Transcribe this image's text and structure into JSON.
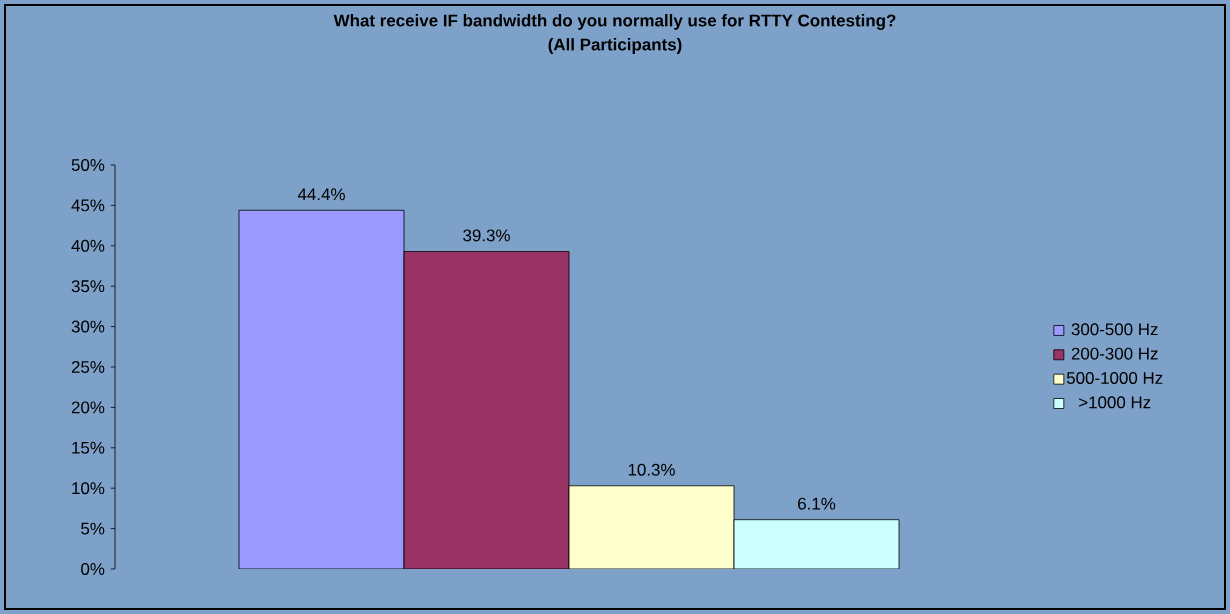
{
  "chart_data": {
    "type": "bar",
    "title": "What receive IF bandwidth do you normally use for RTTY Contesting?",
    "subtitle": "(All Participants)",
    "categories": [
      null
    ],
    "series": [
      {
        "name": "300-500 Hz",
        "color": "#9999ff",
        "values": [
          44.4
        ],
        "value_labels": [
          "44.4%"
        ]
      },
      {
        "name": "200-300 Hz",
        "color": "#993366",
        "values": [
          39.3
        ],
        "value_labels": [
          "39.3%"
        ]
      },
      {
        "name": "500-1000 Hz",
        "color": "#ffffcc",
        "values": [
          10.3
        ],
        "value_labels": [
          "10.3%"
        ]
      },
      {
        "name": ">1000 Hz",
        "color": "#ccffff",
        "values": [
          6.1
        ],
        "value_labels": [
          "6.1%"
        ]
      }
    ],
    "ylim": [
      0,
      50
    ],
    "yticks": [
      {
        "value": 0,
        "label": "0%"
      },
      {
        "value": 5,
        "label": "5%"
      },
      {
        "value": 10,
        "label": "10%"
      },
      {
        "value": 15,
        "label": "15%"
      },
      {
        "value": 20,
        "label": "20%"
      },
      {
        "value": 25,
        "label": "25%"
      },
      {
        "value": 30,
        "label": "30%"
      },
      {
        "value": 35,
        "label": "35%"
      },
      {
        "value": 40,
        "label": "40%"
      },
      {
        "value": 45,
        "label": "45%"
      },
      {
        "value": 50,
        "label": "50%"
      }
    ],
    "grid": false,
    "legend": "right"
  }
}
